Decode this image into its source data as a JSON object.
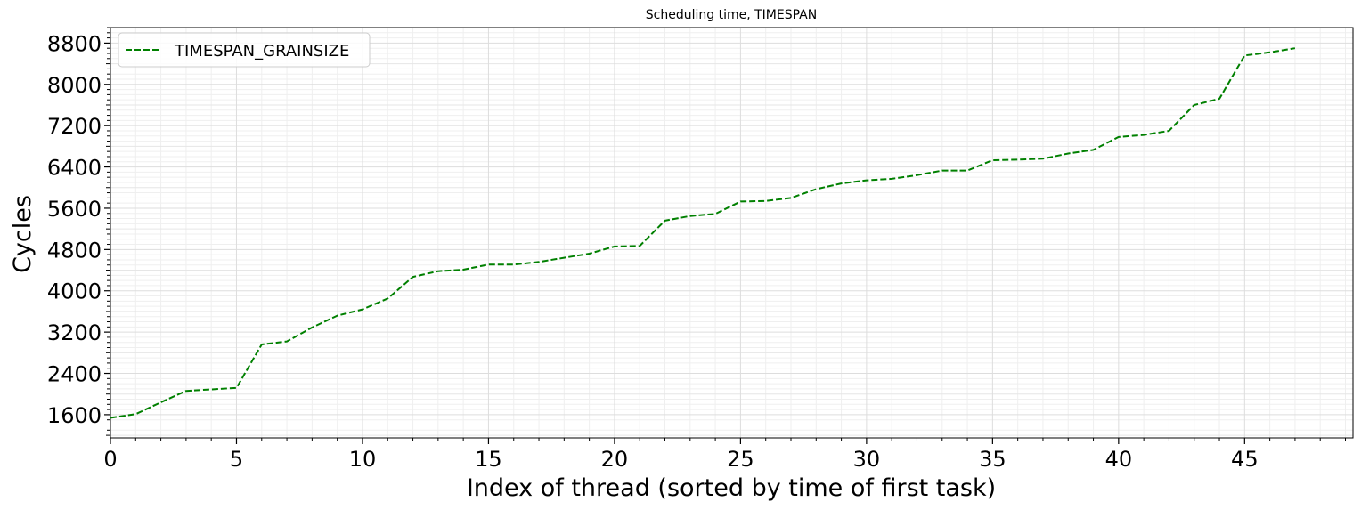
{
  "chart_data": {
    "type": "line",
    "title": "Scheduling time, TIMESPAN",
    "xlabel": "Index of thread (sorted by time of first task)",
    "ylabel": "Cycles",
    "xlim": [
      0,
      49.3
    ],
    "ylim": [
      1150,
      9100
    ],
    "xticks": [
      0,
      5,
      10,
      15,
      20,
      25,
      30,
      35,
      40,
      45
    ],
    "yticks": [
      1600,
      2400,
      3200,
      4000,
      4800,
      5600,
      6400,
      7200,
      8000,
      8800
    ],
    "grid": true,
    "minor_grid": true,
    "legend_position": "upper-left",
    "series": [
      {
        "name": "TIMESPAN_GRAINSIZE",
        "color": "#008000",
        "linestyle": "dashed",
        "x": [
          0,
          1,
          2,
          3,
          4,
          5,
          6,
          7,
          8,
          9,
          10,
          11,
          12,
          13,
          14,
          15,
          16,
          17,
          18,
          19,
          20,
          21,
          22,
          23,
          24,
          25,
          26,
          27,
          28,
          29,
          30,
          31,
          32,
          33,
          34,
          35,
          36,
          37,
          38,
          39,
          40,
          41,
          42,
          43,
          44,
          45,
          46,
          47
        ],
        "values": [
          1540,
          1610,
          1840,
          2060,
          2090,
          2120,
          2960,
          3020,
          3290,
          3520,
          3640,
          3850,
          4270,
          4380,
          4410,
          4510,
          4510,
          4560,
          4640,
          4720,
          4860,
          4870,
          5360,
          5450,
          5490,
          5730,
          5740,
          5800,
          5970,
          6080,
          6140,
          6170,
          6240,
          6330,
          6330,
          6530,
          6540,
          6560,
          6660,
          6730,
          6980,
          7020,
          7100,
          7600,
          7720,
          8560,
          8620,
          8700
        ]
      }
    ]
  }
}
